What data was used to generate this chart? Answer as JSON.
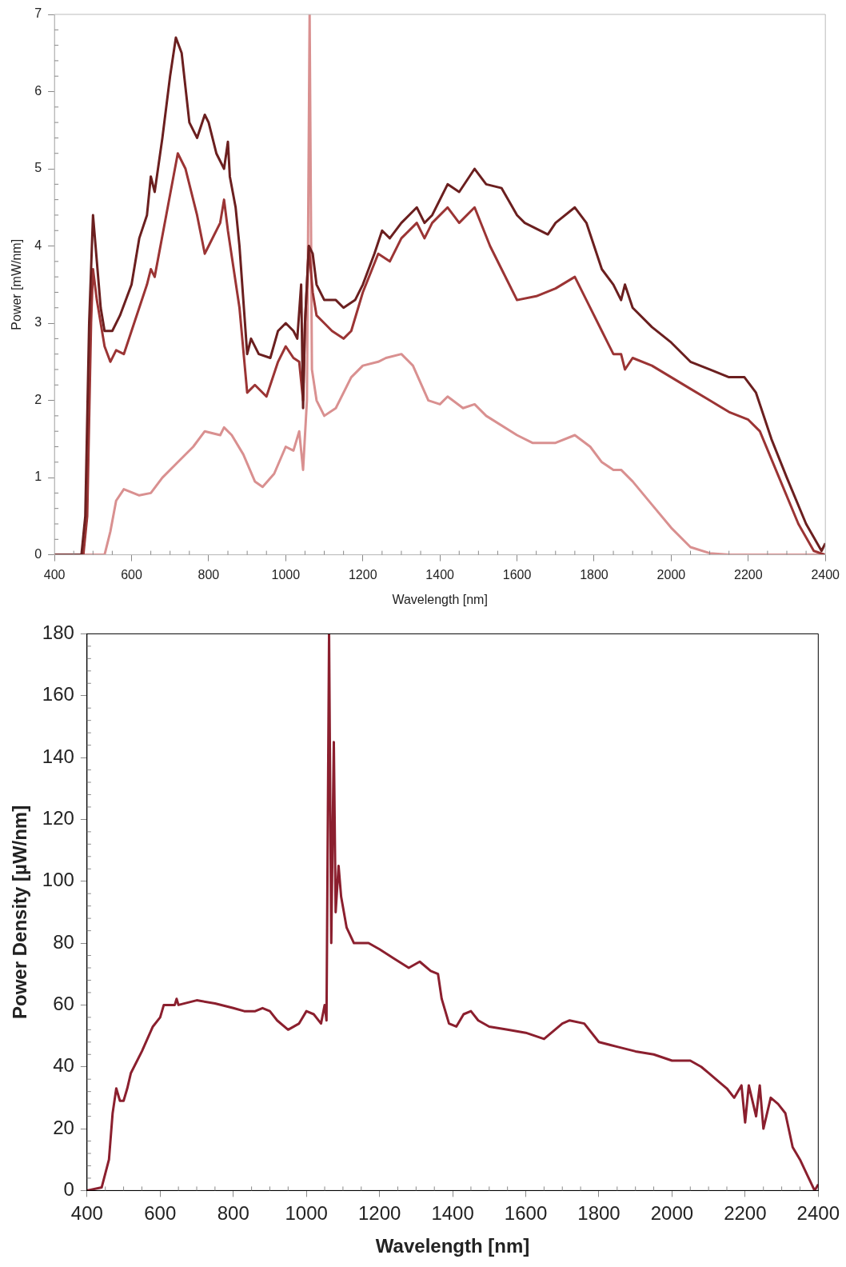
{
  "chart_data": [
    {
      "type": "line",
      "xlabel": "Wavelength [nm]",
      "ylabel": "Power [mW/nm]",
      "xlim": [
        400,
        2400
      ],
      "ylim": [
        0,
        7
      ],
      "xticks": [
        400,
        600,
        800,
        1000,
        1200,
        1400,
        1600,
        1800,
        2000,
        2200,
        2400
      ],
      "yticks": [
        0,
        1,
        2,
        3,
        4,
        5,
        6,
        7
      ],
      "grid": false,
      "series": [
        {
          "color": "#6b1f1f",
          "x": [
            400,
            470,
            480,
            490,
            500,
            510,
            520,
            530,
            550,
            570,
            600,
            620,
            640,
            650,
            660,
            680,
            700,
            715,
            730,
            750,
            770,
            790,
            800,
            820,
            840,
            850,
            855,
            870,
            880,
            900,
            910,
            930,
            960,
            980,
            1000,
            1020,
            1030,
            1040,
            1045,
            1050,
            1060,
            1070,
            1080,
            1100,
            1130,
            1150,
            1180,
            1200,
            1230,
            1250,
            1270,
            1300,
            1340,
            1360,
            1380,
            1420,
            1450,
            1490,
            1520,
            1560,
            1600,
            1620,
            1680,
            1700,
            1750,
            1780,
            1820,
            1850,
            1870,
            1880,
            1900,
            1950,
            2000,
            2050,
            2100,
            2150,
            2190,
            2220,
            2260,
            2300,
            2350,
            2390,
            2400
          ],
          "values": [
            0,
            0,
            0.5,
            3,
            4.4,
            3.8,
            3.2,
            2.9,
            2.9,
            3.1,
            3.5,
            4.1,
            4.4,
            4.9,
            4.7,
            5.4,
            6.2,
            6.7,
            6.5,
            5.6,
            5.4,
            5.7,
            5.6,
            5.2,
            5.0,
            5.35,
            4.9,
            4.5,
            4.0,
            2.6,
            2.8,
            2.6,
            2.55,
            2.9,
            3.0,
            2.9,
            2.8,
            3.5,
            1.9,
            3.0,
            4.0,
            3.9,
            3.5,
            3.3,
            3.3,
            3.2,
            3.3,
            3.5,
            3.9,
            4.2,
            4.1,
            4.3,
            4.5,
            4.3,
            4.4,
            4.8,
            4.7,
            5.0,
            4.8,
            4.75,
            4.4,
            4.3,
            4.15,
            4.3,
            4.5,
            4.3,
            3.7,
            3.5,
            3.3,
            3.5,
            3.2,
            2.95,
            2.75,
            2.5,
            2.4,
            2.3,
            2.3,
            2.1,
            1.5,
            1.0,
            0.4,
            0.05,
            0.15
          ]
        },
        {
          "color": "#9b3434",
          "x": [
            400,
            475,
            485,
            495,
            500,
            510,
            530,
            545,
            560,
            580,
            600,
            640,
            650,
            660,
            690,
            720,
            740,
            770,
            790,
            800,
            830,
            840,
            850,
            880,
            900,
            920,
            950,
            980,
            1000,
            1020,
            1035,
            1045,
            1050,
            1060,
            1070,
            1080,
            1100,
            1120,
            1150,
            1170,
            1200,
            1240,
            1270,
            1300,
            1340,
            1360,
            1380,
            1420,
            1450,
            1490,
            1530,
            1560,
            1600,
            1650,
            1700,
            1750,
            1780,
            1820,
            1850,
            1870,
            1880,
            1900,
            1950,
            2000,
            2050,
            2100,
            2150,
            2200,
            2230,
            2280,
            2330,
            2370,
            2400
          ],
          "values": [
            0,
            0,
            0.5,
            3.0,
            3.7,
            3.3,
            2.7,
            2.5,
            2.65,
            2.6,
            2.9,
            3.5,
            3.7,
            3.6,
            4.4,
            5.2,
            5.0,
            4.4,
            3.9,
            4.0,
            4.3,
            4.6,
            4.2,
            3.2,
            2.1,
            2.2,
            2.05,
            2.5,
            2.7,
            2.55,
            2.5,
            2.0,
            3.0,
            4.0,
            3.4,
            3.1,
            3.0,
            2.9,
            2.8,
            2.9,
            3.4,
            3.9,
            3.8,
            4.1,
            4.3,
            4.1,
            4.3,
            4.5,
            4.3,
            4.5,
            4.0,
            3.7,
            3.3,
            3.35,
            3.45,
            3.6,
            3.3,
            2.9,
            2.6,
            2.6,
            2.4,
            2.55,
            2.45,
            2.3,
            2.15,
            2.0,
            1.85,
            1.75,
            1.6,
            1.0,
            0.4,
            0.05,
            0
          ]
        },
        {
          "color": "#d99090",
          "x": [
            400,
            530,
            545,
            560,
            580,
            620,
            650,
            680,
            720,
            760,
            790,
            830,
            840,
            860,
            890,
            920,
            940,
            970,
            1000,
            1020,
            1035,
            1045,
            1055,
            1062,
            1068,
            1080,
            1100,
            1130,
            1170,
            1200,
            1240,
            1260,
            1300,
            1330,
            1370,
            1400,
            1420,
            1460,
            1490,
            1520,
            1600,
            1640,
            1700,
            1750,
            1790,
            1820,
            1850,
            1870,
            1900,
            1950,
            2000,
            2050,
            2100,
            2150,
            2400
          ],
          "values": [
            0,
            0,
            0.3,
            0.7,
            0.85,
            0.77,
            0.8,
            1.0,
            1.2,
            1.4,
            1.6,
            1.55,
            1.65,
            1.55,
            1.3,
            0.95,
            0.88,
            1.05,
            1.4,
            1.35,
            1.6,
            1.1,
            2.0,
            7,
            2.4,
            2.0,
            1.8,
            1.9,
            2.3,
            2.45,
            2.5,
            2.55,
            2.6,
            2.45,
            2.0,
            1.95,
            2.05,
            1.9,
            1.95,
            1.8,
            1.55,
            1.45,
            1.45,
            1.55,
            1.4,
            1.2,
            1.1,
            1.1,
            0.95,
            0.65,
            0.35,
            0.1,
            0.02,
            0,
            0
          ]
        }
      ]
    },
    {
      "type": "line",
      "xlabel": "Wavelength [nm]",
      "ylabel": "Power Density [µW/nm]",
      "xlim": [
        400,
        2400
      ],
      "ylim": [
        0,
        180
      ],
      "xticks": [
        400,
        600,
        800,
        1000,
        1200,
        1400,
        1600,
        1800,
        2000,
        2200,
        2400
      ],
      "yticks": [
        0,
        20,
        40,
        60,
        80,
        100,
        120,
        140,
        160,
        180
      ],
      "grid": false,
      "series": [
        {
          "color": "#8b1f2e",
          "x": [
            400,
            440,
            460,
            470,
            480,
            490,
            500,
            510,
            520,
            550,
            580,
            600,
            610,
            640,
            645,
            650,
            700,
            750,
            800,
            830,
            860,
            880,
            900,
            920,
            950,
            980,
            1000,
            1020,
            1040,
            1050,
            1055,
            1062,
            1068,
            1075,
            1080,
            1088,
            1095,
            1110,
            1130,
            1170,
            1200,
            1240,
            1280,
            1310,
            1340,
            1360,
            1370,
            1390,
            1410,
            1430,
            1450,
            1470,
            1500,
            1550,
            1600,
            1650,
            1700,
            1720,
            1760,
            1800,
            1850,
            1900,
            1950,
            2000,
            2050,
            2080,
            2100,
            2130,
            2150,
            2170,
            2190,
            2200,
            2210,
            2230,
            2240,
            2250,
            2270,
            2290,
            2310,
            2330,
            2350,
            2370,
            2390,
            2400
          ],
          "values": [
            0,
            1,
            10,
            25,
            33,
            29,
            29,
            33,
            38,
            45,
            53,
            56,
            60,
            60,
            62,
            60,
            61.5,
            60.5,
            59,
            58,
            58,
            59,
            58,
            55,
            52,
            54,
            58,
            57,
            54,
            60,
            55,
            180,
            80,
            145,
            90,
            105,
            95,
            85,
            80,
            80,
            78,
            75,
            72,
            74,
            71,
            70,
            62,
            54,
            53,
            57,
            58,
            55,
            53,
            52,
            51,
            49,
            54,
            55,
            54,
            48,
            46.5,
            45,
            44,
            42,
            42,
            40,
            38,
            35,
            33,
            30,
            34,
            22,
            34,
            24,
            34,
            20,
            30,
            28,
            25,
            14,
            10,
            5,
            0,
            2
          ]
        }
      ]
    }
  ]
}
